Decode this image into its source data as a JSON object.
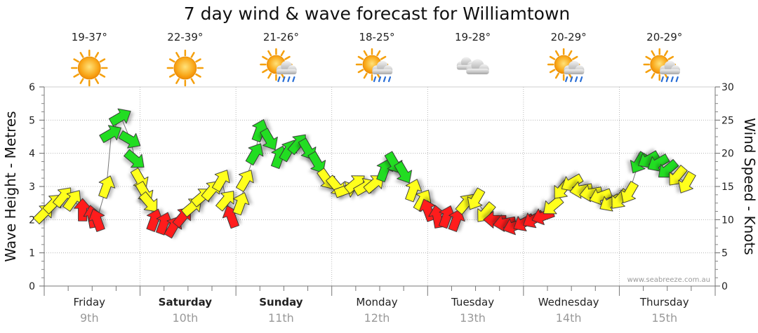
{
  "chart_data": {
    "type": "line",
    "title": "7 day wind & wave forecast for Williamtown",
    "ylabel": "Wave Height - Metres",
    "y2label": "Wind Speed - Knots",
    "ylim": [
      0,
      6
    ],
    "y2lim": [
      0,
      30
    ],
    "yticks": [
      "0",
      "1",
      "2",
      "3",
      "4",
      "5",
      "6"
    ],
    "y2ticks": [
      "0",
      "5",
      "10",
      "15",
      "20",
      "25",
      "30"
    ],
    "credit": "www.seabreeze.com.au",
    "grid": true,
    "days": [
      {
        "name": "Friday",
        "date": "9th",
        "temp": "19-37°",
        "weather": "sunny",
        "bold": false
      },
      {
        "name": "Saturday",
        "date": "10th",
        "temp": "22-39°",
        "weather": "sunny",
        "bold": true
      },
      {
        "name": "Sunday",
        "date": "11th",
        "temp": "21-26°",
        "weather": "sun-showers",
        "bold": true
      },
      {
        "name": "Monday",
        "date": "12th",
        "temp": "18-25°",
        "weather": "sun-showers",
        "bold": false
      },
      {
        "name": "Tuesday",
        "date": "13th",
        "temp": "19-28°",
        "weather": "cloudy",
        "bold": false
      },
      {
        "name": "Wednesday",
        "date": "14th",
        "temp": "20-29°",
        "weather": "sun-showers",
        "bold": false
      },
      {
        "name": "Thursday",
        "date": "15th",
        "temp": "20-29°",
        "weather": "sun-showers",
        "bold": false
      }
    ],
    "colors": {
      "light": "#ff1a1a",
      "moderate": "#ffff1a",
      "strong": "#22dd22"
    },
    "wind_series": [
      {
        "t": 0.0,
        "knots": 11.0,
        "dir": 225,
        "band": "moderate"
      },
      {
        "t": 0.1,
        "knots": 12.5,
        "dir": 225,
        "band": "moderate"
      },
      {
        "t": 0.2,
        "knots": 13.5,
        "dir": 220,
        "band": "moderate"
      },
      {
        "t": 0.3,
        "knots": 13.0,
        "dir": 215,
        "band": "moderate"
      },
      {
        "t": 0.4,
        "knots": 11.5,
        "dir": 180,
        "band": "light"
      },
      {
        "t": 0.5,
        "knots": 10.5,
        "dir": 170,
        "band": "light"
      },
      {
        "t": 0.55,
        "knots": 10.0,
        "dir": 160,
        "band": "light"
      },
      {
        "t": 0.65,
        "knots": 15.0,
        "dir": 200,
        "band": "moderate"
      },
      {
        "t": 0.7,
        "knots": 23.0,
        "dir": 240,
        "band": "strong"
      },
      {
        "t": 0.8,
        "knots": 25.5,
        "dir": 240,
        "band": "strong"
      },
      {
        "t": 0.9,
        "knots": 22.0,
        "dir": 300,
        "band": "strong"
      },
      {
        "t": 0.95,
        "knots": 19.0,
        "dir": 310,
        "band": "strong"
      },
      {
        "t": 1.0,
        "knots": 16.0,
        "dir": 330,
        "band": "moderate"
      },
      {
        "t": 1.05,
        "knots": 14.0,
        "dir": 330,
        "band": "moderate"
      },
      {
        "t": 1.1,
        "knots": 12.5,
        "dir": 320,
        "band": "moderate"
      },
      {
        "t": 1.15,
        "knots": 10.0,
        "dir": 200,
        "band": "light"
      },
      {
        "t": 1.25,
        "knots": 9.5,
        "dir": 200,
        "band": "light"
      },
      {
        "t": 1.35,
        "knots": 9.0,
        "dir": 210,
        "band": "light"
      },
      {
        "t": 1.45,
        "knots": 10.5,
        "dir": 220,
        "band": "light"
      },
      {
        "t": 1.55,
        "knots": 12.0,
        "dir": 230,
        "band": "moderate"
      },
      {
        "t": 1.65,
        "knots": 13.5,
        "dir": 230,
        "band": "moderate"
      },
      {
        "t": 1.75,
        "knots": 14.5,
        "dir": 220,
        "band": "moderate"
      },
      {
        "t": 1.85,
        "knots": 16.0,
        "dir": 210,
        "band": "moderate"
      },
      {
        "t": 1.9,
        "knots": 13.0,
        "dir": 220,
        "band": "moderate"
      },
      {
        "t": 1.95,
        "knots": 10.5,
        "dir": 160,
        "band": "light"
      },
      {
        "t": 2.05,
        "knots": 12.5,
        "dir": 200,
        "band": "moderate"
      },
      {
        "t": 2.1,
        "knots": 16.0,
        "dir": 210,
        "band": "moderate"
      },
      {
        "t": 2.2,
        "knots": 20.0,
        "dir": 210,
        "band": "strong"
      },
      {
        "t": 2.25,
        "knots": 23.5,
        "dir": 200,
        "band": "strong"
      },
      {
        "t": 2.35,
        "knots": 22.0,
        "dir": 330,
        "band": "strong"
      },
      {
        "t": 2.45,
        "knots": 19.5,
        "dir": 200,
        "band": "strong"
      },
      {
        "t": 2.55,
        "knots": 20.5,
        "dir": 210,
        "band": "strong"
      },
      {
        "t": 2.65,
        "knots": 21.5,
        "dir": 220,
        "band": "strong"
      },
      {
        "t": 2.75,
        "knots": 20.5,
        "dir": 330,
        "band": "strong"
      },
      {
        "t": 2.85,
        "knots": 18.5,
        "dir": 330,
        "band": "strong"
      },
      {
        "t": 2.95,
        "knots": 16.0,
        "dir": 325,
        "band": "moderate"
      },
      {
        "t": 3.05,
        "knots": 15.0,
        "dir": 320,
        "band": "moderate"
      },
      {
        "t": 3.15,
        "knots": 14.5,
        "dir": 250,
        "band": "moderate"
      },
      {
        "t": 3.25,
        "knots": 15.5,
        "dir": 230,
        "band": "moderate"
      },
      {
        "t": 3.35,
        "knots": 15.0,
        "dir": 240,
        "band": "moderate"
      },
      {
        "t": 3.45,
        "knots": 15.5,
        "dir": 230,
        "band": "moderate"
      },
      {
        "t": 3.55,
        "knots": 17.5,
        "dir": 200,
        "band": "strong"
      },
      {
        "t": 3.65,
        "knots": 18.5,
        "dir": 330,
        "band": "strong"
      },
      {
        "t": 3.75,
        "knots": 17.0,
        "dir": 330,
        "band": "strong"
      },
      {
        "t": 3.85,
        "knots": 14.5,
        "dir": 200,
        "band": "moderate"
      },
      {
        "t": 3.95,
        "knots": 13.0,
        "dir": 210,
        "band": "moderate"
      },
      {
        "t": 4.0,
        "knots": 11.5,
        "dir": 160,
        "band": "light"
      },
      {
        "t": 4.1,
        "knots": 10.5,
        "dir": 170,
        "band": "light"
      },
      {
        "t": 4.2,
        "knots": 10.5,
        "dir": 200,
        "band": "light"
      },
      {
        "t": 4.3,
        "knots": 10.0,
        "dir": 200,
        "band": "light"
      },
      {
        "t": 4.4,
        "knots": 12.5,
        "dir": 220,
        "band": "moderate"
      },
      {
        "t": 4.5,
        "knots": 13.0,
        "dir": 30,
        "band": "moderate"
      },
      {
        "t": 4.6,
        "knots": 11.0,
        "dir": 40,
        "band": "moderate"
      },
      {
        "t": 4.7,
        "knots": 10.0,
        "dir": 90,
        "band": "light"
      },
      {
        "t": 4.8,
        "knots": 9.5,
        "dir": 80,
        "band": "light"
      },
      {
        "t": 4.9,
        "knots": 9.0,
        "dir": 70,
        "band": "light"
      },
      {
        "t": 5.0,
        "knots": 9.5,
        "dir": 60,
        "band": "light"
      },
      {
        "t": 5.1,
        "knots": 10.0,
        "dir": 60,
        "band": "light"
      },
      {
        "t": 5.2,
        "knots": 10.5,
        "dir": 70,
        "band": "light"
      },
      {
        "t": 5.3,
        "knots": 12.0,
        "dir": 50,
        "band": "moderate"
      },
      {
        "t": 5.4,
        "knots": 14.5,
        "dir": 40,
        "band": "moderate"
      },
      {
        "t": 5.5,
        "knots": 15.5,
        "dir": 60,
        "band": "moderate"
      },
      {
        "t": 5.6,
        "knots": 14.5,
        "dir": 80,
        "band": "moderate"
      },
      {
        "t": 5.7,
        "knots": 14.0,
        "dir": 80,
        "band": "moderate"
      },
      {
        "t": 5.8,
        "knots": 13.5,
        "dir": 70,
        "band": "moderate"
      },
      {
        "t": 5.9,
        "knots": 12.5,
        "dir": 60,
        "band": "moderate"
      },
      {
        "t": 6.0,
        "knots": 13.0,
        "dir": 40,
        "band": "moderate"
      },
      {
        "t": 6.1,
        "knots": 14.0,
        "dir": 30,
        "band": "moderate"
      },
      {
        "t": 6.2,
        "knots": 18.5,
        "dir": 30,
        "band": "strong"
      },
      {
        "t": 6.3,
        "knots": 19.0,
        "dir": 60,
        "band": "strong"
      },
      {
        "t": 6.4,
        "knots": 18.5,
        "dir": 60,
        "band": "strong"
      },
      {
        "t": 6.5,
        "knots": 17.5,
        "dir": 50,
        "band": "strong"
      },
      {
        "t": 6.6,
        "knots": 16.5,
        "dir": 40,
        "band": "moderate"
      },
      {
        "t": 6.7,
        "knots": 15.5,
        "dir": 30,
        "band": "moderate"
      }
    ]
  }
}
